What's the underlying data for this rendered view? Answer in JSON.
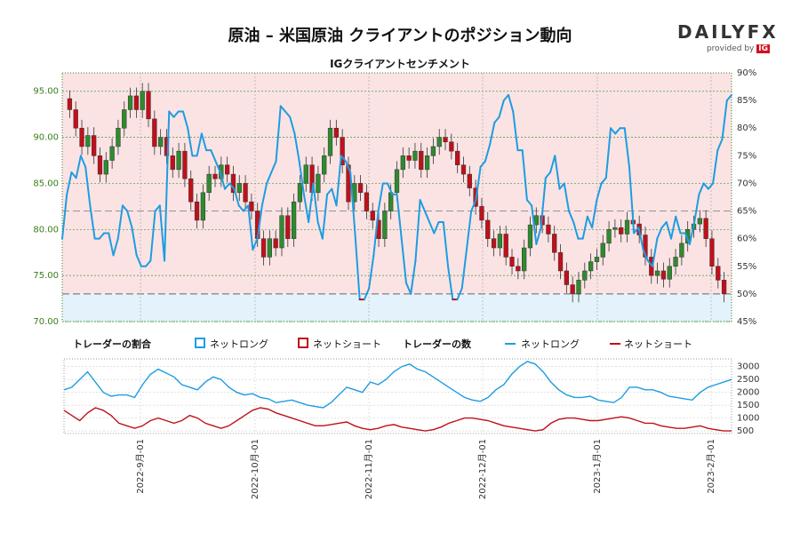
{
  "title": "原油 – 米国原油 クライアントのポジション動向",
  "subtitle": "IGクライアントセンチメント",
  "logo": {
    "word": "DAILYFX",
    "provided_by": "provided by",
    "ig": "IG"
  },
  "colors": {
    "long": "#1e9de0",
    "short": "#c0101a",
    "up": "#2e8b2e",
    "down": "#c0101a",
    "long_bg": "#e4f3fb",
    "short_bg": "#fbe3e4"
  },
  "legend": {
    "ratio_title": "トレーダーの割合",
    "count_title": "トレーダーの数",
    "net_long": "ネットロング",
    "net_short": "ネットショート"
  },
  "chart_data": [
    {
      "type": "candlestick",
      "title": "IGクライアントセンチメント",
      "y_left_ticks": [
        "70.00",
        "75.00",
        "80.00",
        "85.00",
        "90.00",
        "95.00"
      ],
      "ylim_left": [
        70,
        97
      ],
      "y_right_ticks": [
        "45%",
        "50%",
        "55%",
        "60%",
        "65%",
        "70%",
        "75%",
        "80%",
        "85%",
        "90%"
      ],
      "ylim_right": [
        45,
        90
      ],
      "grid": true,
      "close": [
        93,
        91,
        89,
        90.2,
        88,
        86,
        87.5,
        89,
        91,
        93,
        94.5,
        93,
        95,
        92,
        89,
        90,
        88,
        86.5,
        88.5,
        85.5,
        83,
        81,
        84,
        86,
        85.5,
        87,
        86,
        84,
        85,
        83,
        82,
        79,
        77,
        79,
        78,
        81.5,
        79,
        83,
        85,
        87,
        84,
        86,
        88,
        91,
        90,
        87,
        83,
        85,
        84,
        82,
        81,
        79,
        82,
        84,
        86.5,
        88,
        87.5,
        88.5,
        86.5,
        88,
        89,
        90,
        89.5,
        88.5,
        87,
        86,
        84.5,
        82.5,
        81,
        79,
        78,
        79.5,
        77,
        76,
        75.5,
        78,
        80.5,
        81.5,
        80.5,
        79.5,
        77.5,
        75.5,
        74,
        73,
        74.5,
        75.5,
        76.5,
        77,
        78.5,
        80,
        80.2,
        79.5,
        81,
        80.6,
        79.4,
        77,
        75,
        75.5,
        74.6,
        76,
        77,
        78.5,
        80,
        80.6,
        81.2,
        79,
        76,
        74.5,
        73
      ],
      "net_long_pct": [
        60,
        68,
        72,
        71,
        75,
        73,
        66,
        60,
        60,
        61,
        61,
        57,
        60,
        66,
        65,
        62,
        57,
        55,
        55,
        56,
        65,
        66,
        56,
        83,
        82,
        83,
        83,
        80,
        75,
        75,
        79,
        76,
        76,
        74,
        72,
        69,
        70,
        69,
        66,
        65,
        66,
        58,
        60,
        66,
        70,
        72,
        74,
        84,
        83,
        82,
        79,
        74,
        68,
        63,
        70,
        63,
        60,
        68,
        69,
        66,
        75,
        74,
        72,
        61,
        49,
        49,
        51,
        57,
        65,
        70,
        70,
        68,
        68,
        60,
        52,
        50,
        56,
        67,
        65,
        63,
        61,
        63,
        63,
        55,
        49,
        49,
        51,
        58,
        65,
        67,
        73,
        74,
        77,
        81,
        82,
        85,
        86,
        83,
        76,
        76,
        67,
        66,
        59,
        62,
        71,
        72,
        75,
        69,
        70,
        65,
        63,
        60,
        60,
        64,
        62,
        67,
        70,
        71,
        80,
        79,
        80,
        80,
        73,
        61,
        62,
        58,
        56,
        55,
        60,
        62,
        63,
        60,
        64,
        61,
        61,
        59,
        63,
        68,
        70,
        69,
        70,
        76,
        78,
        85,
        86
      ],
      "x_ticks": [
        "2022-9月-01",
        "2022-10月-01",
        "2022-11月-01",
        "2022-12月-01",
        "2023-1月-01",
        "2023-2月-01"
      ]
    },
    {
      "type": "line",
      "y_ticks": [
        "500",
        "1000",
        "1500",
        "2000",
        "2500",
        "3000"
      ],
      "ylim": [
        400,
        3300
      ],
      "series": [
        {
          "name": "ネットロング",
          "values": [
            2100,
            2200,
            2500,
            2800,
            2400,
            2000,
            1850,
            1900,
            1900,
            1800,
            2300,
            2700,
            2900,
            2750,
            2600,
            2300,
            2200,
            2100,
            2400,
            2600,
            2500,
            2200,
            2000,
            1900,
            1950,
            1800,
            1750,
            1600,
            1650,
            1700,
            1600,
            1500,
            1450,
            1400,
            1600,
            1900,
            2200,
            2100,
            2000,
            2400,
            2300,
            2500,
            2800,
            3000,
            3100,
            2900,
            2800,
            2600,
            2400,
            2200,
            2000,
            1800,
            1700,
            1650,
            1800,
            2100,
            2300,
            2700,
            3000,
            3200,
            3100,
            2800,
            2400,
            2100,
            1900,
            1800,
            1800,
            1850,
            1700,
            1650,
            1600,
            1800,
            2200,
            2200,
            2100,
            2100,
            2000,
            1850,
            1800,
            1750,
            1700,
            2000,
            2200,
            2300,
            2400,
            2500
          ]
        },
        {
          "name": "ネットショート",
          "values": [
            1300,
            1100,
            900,
            1200,
            1400,
            1300,
            1100,
            800,
            700,
            600,
            700,
            900,
            1000,
            900,
            800,
            900,
            1100,
            1000,
            800,
            700,
            600,
            700,
            900,
            1100,
            1300,
            1400,
            1350,
            1200,
            1100,
            1000,
            900,
            800,
            700,
            700,
            750,
            800,
            850,
            700,
            600,
            550,
            600,
            700,
            750,
            650,
            600,
            550,
            500,
            550,
            650,
            800,
            900,
            1000,
            1000,
            950,
            900,
            800,
            700,
            650,
            600,
            550,
            500,
            550,
            800,
            950,
            1000,
            1000,
            950,
            900,
            900,
            950,
            1000,
            1050,
            1000,
            900,
            800,
            800,
            700,
            650,
            600,
            600,
            650,
            700,
            600,
            550,
            500,
            500
          ]
        }
      ],
      "legend_position": "top"
    }
  ]
}
